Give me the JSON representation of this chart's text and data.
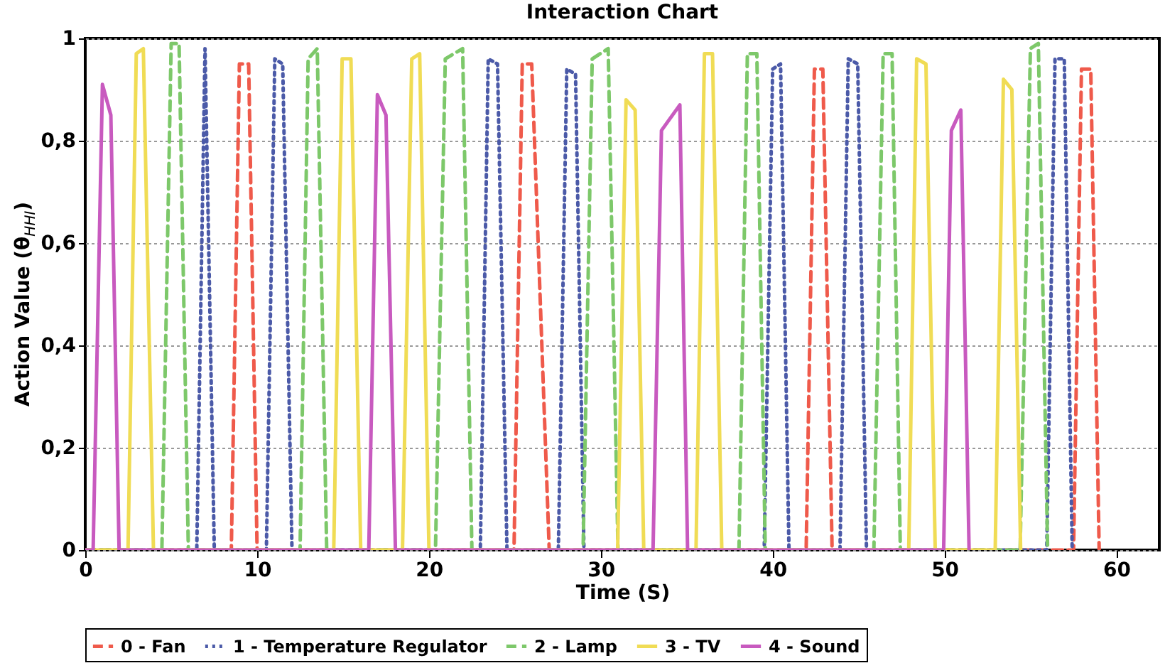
{
  "chart_data": {
    "type": "line",
    "title": "Interaction Chart",
    "xlabel": "Time (S)",
    "ylabel": "Action Value (θ$_{HHI}$)",
    "xlim": [
      0,
      62.5
    ],
    "xticks": [
      0,
      10,
      20,
      30,
      40,
      50,
      60
    ],
    "ylim": [
      0,
      1
    ],
    "yticks": [
      0,
      {
        "value": 0.2,
        "label": "0,2"
      },
      {
        "value": 0.4,
        "label": "0,4"
      },
      {
        "value": 0.6,
        "label": "0,6"
      },
      {
        "value": 0.8,
        "label": "0,8"
      },
      1
    ],
    "grid": "y",
    "legend": "bottom",
    "series": [
      {
        "name": "0 - Fan",
        "color": "#ef5a4b",
        "line_style": "dashed",
        "x": [
          0,
          8.5,
          8.97,
          9.51,
          10.0,
          24.95,
          25.43,
          25.98,
          27.0,
          41.95,
          42.43,
          42.92,
          43.46,
          57.51,
          57.97,
          58.51,
          59.0
        ],
        "values": [
          0,
          0,
          0.95,
          0.95,
          0,
          0,
          0.95,
          0.95,
          0,
          0,
          0.94,
          0.94,
          0,
          0,
          0.94,
          0.94,
          0
        ]
      },
      {
        "name": "1 - Temperature Regulator",
        "color": "#4b5aa8",
        "line_style": "dotted",
        "x": [
          0,
          6.49,
          6.97,
          7.51,
          10.54,
          11.03,
          11.49,
          12.03,
          22.99,
          23.45,
          23.99,
          24.54,
          27.53,
          28.02,
          28.53,
          29.02,
          39.51,
          40.0,
          40.46,
          40.95,
          43.92,
          44.4,
          44.95,
          45.46,
          55.95,
          56.43,
          56.97,
          57.43
        ],
        "values": [
          0,
          0,
          0.98,
          0,
          0,
          0.96,
          0.95,
          0,
          0,
          0.96,
          0.95,
          0,
          0,
          0.94,
          0.93,
          0,
          0,
          0.94,
          0.95,
          0,
          0,
          0.96,
          0.95,
          0,
          0,
          0.96,
          0.96,
          0
        ]
      },
      {
        "name": "2 - Lamp",
        "color": "#7dc86a",
        "line_style": "dashed",
        "x": [
          0,
          4.46,
          5.0,
          5.46,
          6.0,
          12.5,
          12.97,
          13.5,
          14.05,
          20.38,
          20.95,
          21.96,
          22.5,
          28.97,
          29.5,
          30.43,
          31.0,
          38.04,
          38.53,
          39.08,
          39.57,
          45.89,
          46.43,
          46.95,
          47.43,
          54.4,
          55.0,
          55.46,
          56.0
        ],
        "values": [
          0,
          0,
          0.99,
          0.99,
          0,
          0,
          0.96,
          0.98,
          0,
          0,
          0.96,
          0.98,
          0,
          0,
          0.96,
          0.98,
          0,
          0,
          0.97,
          0.97,
          0,
          0,
          0.97,
          0.97,
          0,
          0,
          0.98,
          0.99,
          0
        ]
      },
      {
        "name": "3 - TV",
        "color": "#f0dc55",
        "line_style": "solid",
        "x": [
          0,
          2.49,
          2.97,
          3.38,
          3.97,
          14.46,
          14.95,
          15.46,
          16.03,
          18.46,
          19.0,
          19.46,
          20.0,
          30.98,
          31.47,
          32.0,
          32.5,
          35.54,
          36.03,
          36.5,
          37.04,
          47.92,
          48.38,
          48.92,
          49.46,
          52.95,
          53.43,
          53.92,
          54.43
        ],
        "values": [
          0,
          0,
          0.97,
          0.98,
          0,
          0,
          0.96,
          0.96,
          0,
          0,
          0.96,
          0.97,
          0,
          0,
          0.88,
          0.86,
          0,
          0,
          0.97,
          0.97,
          0,
          0,
          0.96,
          0.95,
          0,
          0,
          0.92,
          0.9,
          0
        ]
      },
      {
        "name": "4 - Sound",
        "color": "#c85abf",
        "line_style": "solid",
        "x": [
          0,
          0.46,
          1.0,
          1.49,
          1.97,
          16.5,
          17.0,
          17.5,
          18.05,
          33.04,
          33.53,
          34.6,
          35.05,
          49.95,
          50.4,
          50.95,
          51.43
        ],
        "values": [
          0,
          0,
          0.91,
          0.85,
          0,
          0,
          0.89,
          0.85,
          0,
          0,
          0.82,
          0.87,
          0,
          0,
          0.82,
          0.86,
          0
        ]
      }
    ]
  }
}
